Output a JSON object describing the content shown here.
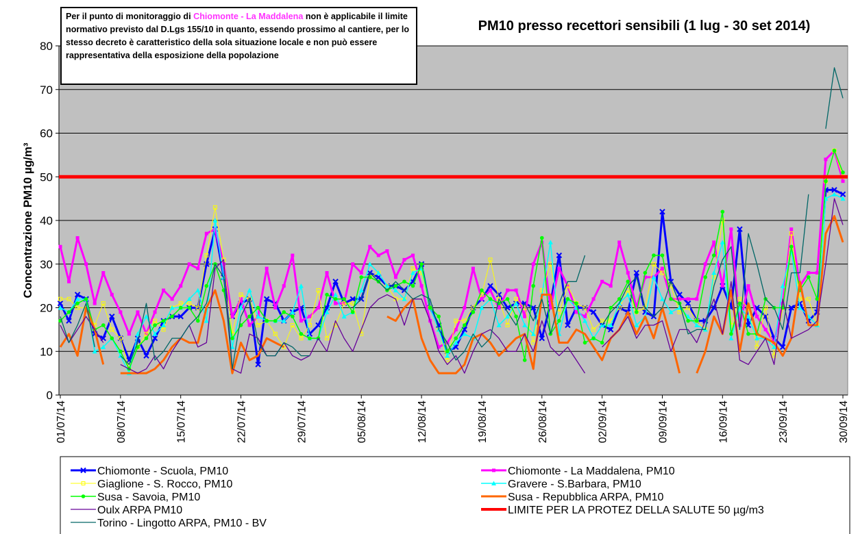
{
  "chart_data": {
    "type": "line",
    "title": "PM10 presso recettori sensibili (1 lug - 30 set 2014)",
    "ylabel": "Concentrazione PM10 µg/m³",
    "annotation": [
      "Per il punto di monitoraggio di",
      "Chiomonte - La Maddalena",
      "non è applicabile il limite normativo previsto dal D.Lgs 155/10 in quanto, essendo prossimo al cantiere, per lo stesso decreto è caratteristico della sola situazione locale e non può essere rappresentativa della esposizione della popolazione"
    ],
    "ylim": [
      0,
      80
    ],
    "yticks": [
      0,
      10,
      20,
      30,
      40,
      50,
      60,
      70,
      80
    ],
    "grid": true,
    "categories": [
      "01/07/14",
      null,
      null,
      null,
      null,
      null,
      null,
      "08/07/14",
      null,
      null,
      null,
      null,
      null,
      null,
      "15/07/14",
      null,
      null,
      null,
      null,
      null,
      null,
      "22/07/14",
      null,
      null,
      null,
      null,
      null,
      null,
      "29/07/14",
      null,
      null,
      null,
      null,
      null,
      null,
      "05/08/14",
      null,
      null,
      null,
      null,
      null,
      null,
      "12/08/14",
      null,
      null,
      null,
      null,
      null,
      null,
      "19/08/14",
      null,
      null,
      null,
      null,
      null,
      null,
      "26/08/14",
      null,
      null,
      null,
      null,
      null,
      null,
      "02/09/14",
      null,
      null,
      null,
      null,
      null,
      null,
      "09/09/14",
      null,
      null,
      null,
      null,
      null,
      null,
      "16/09/14",
      null,
      null,
      null,
      null,
      null,
      null,
      "23/09/14",
      null,
      null,
      null,
      null,
      null,
      null,
      "30/09/14"
    ],
    "series": [
      {
        "name": "Chiomonte - Scuola, PM10",
        "color": "#0000ff",
        "width": 3,
        "marker": "x",
        "values": [
          21,
          17,
          23,
          22,
          14,
          13,
          18,
          13,
          8,
          13,
          9,
          13,
          17,
          18,
          18,
          20,
          20,
          30,
          38,
          27,
          18,
          21,
          22,
          7,
          22,
          21,
          17,
          19,
          20,
          14,
          16,
          20,
          26,
          21,
          22,
          22,
          28,
          27,
          25,
          25,
          24,
          26,
          30,
          20,
          16,
          10,
          11,
          15,
          20,
          22,
          25,
          23,
          20,
          21,
          21,
          20,
          13,
          21,
          32,
          16,
          20,
          20,
          19,
          16,
          15,
          20,
          19,
          28,
          19,
          18,
          42,
          26,
          23,
          21,
          17,
          17,
          20,
          25,
          20,
          38,
          16,
          20,
          18,
          13,
          11,
          20,
          21,
          17,
          19,
          47,
          47,
          46
        ]
      },
      {
        "name": "Chiomonte - La Maddalena, PM10",
        "color": "#ff00ff",
        "width": 3,
        "marker": "square",
        "values": [
          34,
          26,
          36,
          30,
          21,
          28,
          23,
          19,
          14,
          19,
          14,
          19,
          24,
          22,
          25,
          30,
          29,
          37,
          38,
          30,
          18,
          22,
          16,
          18,
          29,
          20,
          25,
          32,
          17,
          18,
          20,
          28,
          21,
          21,
          30,
          28,
          34,
          32,
          33,
          27,
          31,
          32,
          25,
          17,
          11,
          12,
          15,
          20,
          29,
          22,
          24,
          20,
          24,
          24,
          18,
          30,
          35,
          20,
          29,
          25,
          19,
          18,
          22,
          26,
          25,
          35,
          28,
          20,
          27,
          27,
          29,
          22,
          22,
          22,
          22,
          30,
          35,
          25,
          38,
          16,
          25,
          18,
          15,
          12,
          21,
          38,
          25,
          28,
          28,
          54,
          56,
          49
        ]
      },
      {
        "name": "Giaglione - S. Rocco, PM10",
        "color": "#ffff00",
        "width": 1,
        "marker": "open-square",
        "values": [
          22,
          22,
          20,
          20,
          16,
          21,
          15,
          13,
          6,
          11,
          14,
          17,
          15,
          20,
          21,
          21,
          20,
          32,
          43,
          31,
          14,
          23,
          22,
          16,
          17,
          14,
          11,
          16,
          13,
          16,
          24,
          13,
          16,
          21,
          21,
          14,
          27,
          28,
          25,
          22,
          22,
          29,
          28,
          20,
          15,
          8,
          17,
          17,
          20,
          23,
          31,
          22,
          16,
          22,
          20,
          12,
          24,
          30,
          19,
          25,
          21,
          20,
          15,
          17,
          17,
          20,
          24,
          19,
          20,
          30,
          28,
          25,
          19,
          20,
          17,
          15,
          27,
          40,
          16,
          22,
          20,
          11,
          20,
          9,
          20,
          37,
          22,
          22,
          16,
          49,
          56,
          50
        ]
      },
      {
        "name": "Gravere - S.Barbara, PM10",
        "color": "#00ffff",
        "width": 1.5,
        "marker": "triangle",
        "values": [
          20,
          19,
          22,
          22,
          10,
          11,
          13,
          9,
          5,
          14,
          18,
          14,
          16,
          20,
          20,
          22,
          24,
          17,
          40,
          27,
          11,
          20,
          24,
          18,
          17,
          17,
          17,
          19,
          25,
          13,
          13,
          19,
          23,
          18,
          19,
          24,
          30,
          28,
          25,
          24,
          22,
          28,
          29,
          20,
          15,
          9,
          12,
          14,
          13,
          20,
          22,
          16,
          18,
          21,
          16,
          14,
          23,
          35,
          14,
          22,
          20,
          17,
          13,
          16,
          16,
          21,
          23,
          16,
          18,
          27,
          22,
          19,
          20,
          18,
          16,
          15,
          28,
          35,
          13,
          20,
          18,
          13,
          13,
          11,
          25,
          33,
          20,
          18,
          16,
          45,
          46,
          45
        ]
      },
      {
        "name": "Susa - Savoia, PM10",
        "color": "#00ff00",
        "width": 1.5,
        "marker": "circle",
        "values": [
          17,
          19,
          21,
          22,
          15,
          16,
          13,
          10,
          6,
          11,
          13,
          16,
          17,
          18,
          20,
          20,
          17,
          25,
          30,
          24,
          13,
          16,
          18,
          20,
          17,
          17,
          19,
          18,
          14,
          13,
          13,
          23,
          22,
          22,
          19,
          27,
          27,
          26,
          24,
          25,
          26,
          25,
          30,
          20,
          18,
          10,
          13,
          16,
          19,
          24,
          22,
          21,
          22,
          18,
          8,
          25,
          36,
          14,
          17,
          22,
          21,
          12,
          13,
          12,
          20,
          22,
          26,
          19,
          28,
          32,
          32,
          22,
          21,
          17,
          17,
          27,
          32,
          42,
          14,
          21,
          14,
          14,
          22,
          20,
          20,
          34,
          24,
          27,
          22,
          49,
          56,
          51
        ]
      },
      {
        "name": "Susa - Repubblica ARPA, PM10",
        "color": "#ff6600",
        "width": 3,
        "marker": "none",
        "values": [
          11,
          14,
          9,
          20,
          15,
          7,
          null,
          5,
          5,
          5,
          5,
          6,
          8,
          11,
          13,
          12,
          12,
          20,
          24,
          17,
          5,
          12,
          8,
          9,
          13,
          12,
          11,
          null,
          null,
          null,
          null,
          null,
          null,
          null,
          null,
          null,
          null,
          null,
          18,
          17,
          20,
          22,
          13,
          8,
          5,
          5,
          5,
          7,
          13,
          14,
          12,
          9,
          11,
          13,
          14,
          6,
          23,
          23,
          12,
          12,
          15,
          14,
          11,
          8,
          13,
          15,
          19,
          14,
          18,
          13,
          20,
          13,
          5,
          null,
          5,
          10,
          18,
          14,
          24,
          10,
          21,
          14,
          13,
          12,
          9,
          13,
          26,
          16,
          16,
          37,
          41,
          35
        ]
      },
      {
        "name": "Oulx ARPA PM10",
        "color": "#660099",
        "width": 1.3,
        "marker": "none",
        "values": [
          16,
          12,
          15,
          18,
          15,
          12,
          null,
          7,
          6,
          5,
          6,
          9,
          6,
          10,
          13,
          16,
          11,
          12,
          29,
          31,
          6,
          5,
          14,
          13,
          9,
          9,
          12,
          9,
          8,
          9,
          13,
          10,
          17,
          13,
          10,
          15,
          20,
          22,
          23,
          22,
          16,
          22,
          22,
          17,
          10,
          7,
          9,
          5,
          10,
          14,
          15,
          13,
          10,
          10,
          14,
          10,
          17,
          11,
          9,
          11,
          8,
          5,
          null,
          11,
          13,
          15,
          18,
          13,
          16,
          16,
          17,
          10,
          15,
          15,
          12,
          17,
          22,
          14,
          26,
          8,
          7,
          10,
          13,
          7,
          22,
          13,
          14,
          15,
          17,
          30,
          45,
          39
        ]
      },
      {
        "name": "LIMITE PER LA PROTEZ DELLA SALUTE 50 µg/m3",
        "color": "#ff0000",
        "width": 5,
        "marker": "none",
        "value": 50
      },
      {
        "name": "Torino - Lingotto ARPA, PM10 - BV",
        "color": "#006666",
        "width": 1.3,
        "marker": "none",
        "values": [
          18,
          12,
          16,
          21,
          11,
          null,
          null,
          9,
          7,
          12,
          21,
          8,
          10,
          13,
          13,
          16,
          18,
          21,
          30,
          27,
          6,
          18,
          22,
          12,
          9,
          9,
          12,
          11,
          9,
          9,
          null,
          null,
          null,
          null,
          20,
          22,
          28,
          26,
          24,
          26,
          24,
          22,
          23,
          22,
          15,
          12,
          8,
          10,
          14,
          11,
          13,
          22,
          19,
          16,
          21,
          17,
          22,
          14,
          21,
          26,
          26,
          32,
          null,
          16,
          19,
          21,
          25,
          27,
          20,
          18,
          20,
          26,
          21,
          14,
          15,
          15,
          25,
          31,
          34,
          15,
          37,
          30,
          22,
          20,
          15,
          28,
          28,
          46,
          null,
          61,
          75,
          68
        ]
      }
    ]
  }
}
